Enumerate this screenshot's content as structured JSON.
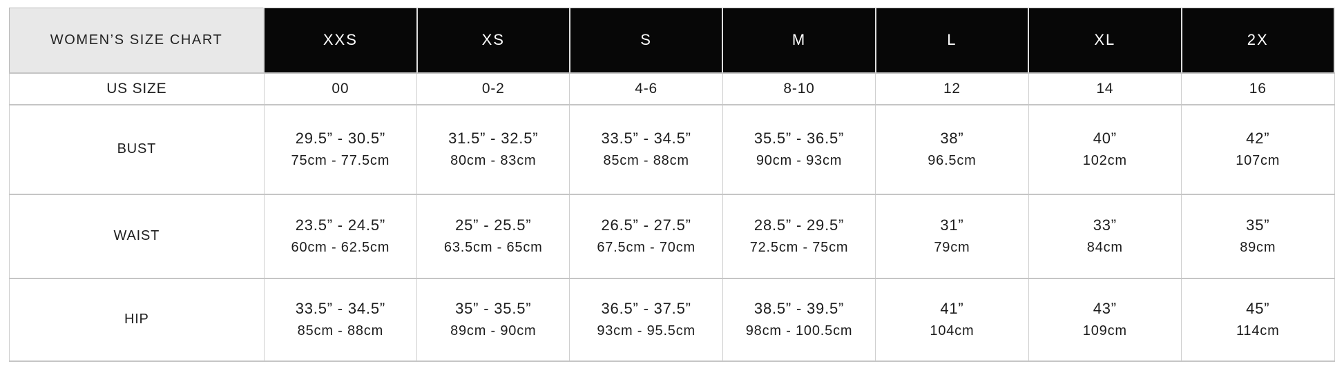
{
  "header": {
    "title": "WOMEN’S SIZE CHART",
    "sizes": [
      "XXS",
      "XS",
      "S",
      "M",
      "L",
      "XL",
      "2X"
    ]
  },
  "rows": {
    "us_size": {
      "label": "US SIZE",
      "values": [
        "00",
        "0-2",
        "4-6",
        "8-10",
        "12",
        "14",
        "16"
      ]
    },
    "bust": {
      "label": "BUST",
      "inches": [
        "29.5” - 30.5”",
        "31.5” - 32.5”",
        "33.5” - 34.5”",
        "35.5” - 36.5”",
        "38”",
        "40”",
        "42”"
      ],
      "cm": [
        "75cm - 77.5cm",
        "80cm - 83cm",
        "85cm - 88cm",
        "90cm - 93cm",
        "96.5cm",
        "102cm",
        "107cm"
      ]
    },
    "waist": {
      "label": "WAIST",
      "inches": [
        "23.5” - 24.5”",
        "25” - 25.5”",
        "26.5” - 27.5”",
        "28.5” - 29.5”",
        "31”",
        "33”",
        "35”"
      ],
      "cm": [
        "60cm - 62.5cm",
        "63.5cm - 65cm",
        "67.5cm - 70cm",
        "72.5cm - 75cm",
        "79cm",
        "84cm",
        "89cm"
      ]
    },
    "hip": {
      "label": "HIP",
      "inches": [
        "33.5” - 34.5”",
        "35” - 35.5”",
        "36.5” - 37.5”",
        "38.5” - 39.5”",
        "41”",
        "43”",
        "45”"
      ],
      "cm": [
        "85cm - 88cm",
        "89cm - 90cm",
        "93cm - 95.5cm",
        "98cm - 100.5cm",
        "104cm",
        "109cm",
        "114cm"
      ]
    }
  },
  "colors": {
    "size_header_bg": "#070707",
    "size_header_text": "#ffffff",
    "title_cell_bg": "#e8e8e8",
    "cell_border": "#c5c5c5",
    "text": "#1d1d1d"
  }
}
